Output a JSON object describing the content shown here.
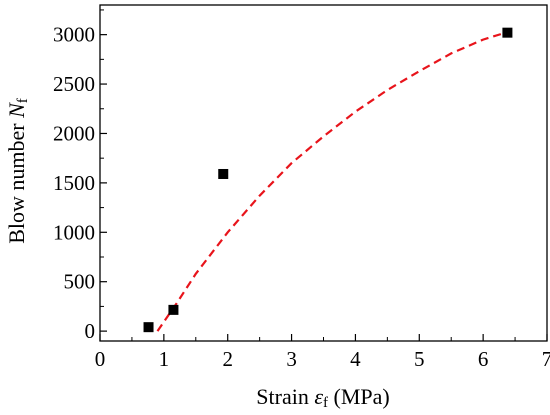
{
  "chart_data": {
    "type": "scatter",
    "xlabel": {
      "prefix": "Strain ",
      "symbol": "ε",
      "subscript": "f",
      "suffix": " (MPa)"
    },
    "ylabel": {
      "prefix": "Blow number ",
      "symbol": "N",
      "subscript": "f"
    },
    "xlim": [
      0,
      7
    ],
    "ylim": [
      -100,
      3300
    ],
    "x_ticks": [
      0,
      1,
      2,
      3,
      4,
      5,
      6,
      7
    ],
    "y_ticks": [
      0,
      500,
      1000,
      1500,
      2000,
      2500,
      3000
    ],
    "x_tick_labels": [
      "0",
      "1",
      "2",
      "3",
      "4",
      "5",
      "6",
      "7"
    ],
    "y_tick_labels": [
      "0",
      "500",
      "1000",
      "1500",
      "2000",
      "2500",
      "3000"
    ],
    "grid": false,
    "series": [
      {
        "type": "scatter",
        "marker": "square",
        "color": "#000000",
        "points": [
          {
            "x": 0.76,
            "y": 40
          },
          {
            "x": 1.15,
            "y": 215
          },
          {
            "x": 1.93,
            "y": 1590
          },
          {
            "x": 6.38,
            "y": 3020
          }
        ]
      },
      {
        "type": "line",
        "style": "dashed",
        "color": "#e8141b",
        "points": [
          {
            "x": 0.9,
            "y": 0
          },
          {
            "x": 1.2,
            "y": 280
          },
          {
            "x": 1.5,
            "y": 580
          },
          {
            "x": 2.0,
            "y": 1000
          },
          {
            "x": 2.5,
            "y": 1370
          },
          {
            "x": 3.0,
            "y": 1700
          },
          {
            "x": 3.5,
            "y": 1970
          },
          {
            "x": 4.0,
            "y": 2220
          },
          {
            "x": 4.5,
            "y": 2440
          },
          {
            "x": 5.0,
            "y": 2630
          },
          {
            "x": 5.5,
            "y": 2810
          },
          {
            "x": 6.0,
            "y": 2950
          },
          {
            "x": 6.4,
            "y": 3030
          }
        ]
      }
    ]
  }
}
